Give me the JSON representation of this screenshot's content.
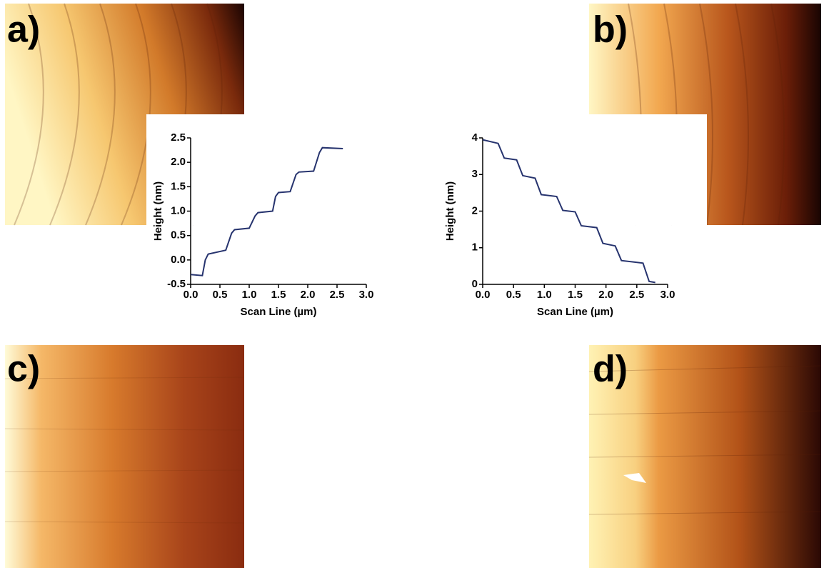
{
  "panels": [
    "a)",
    "b)",
    "c)",
    "d)"
  ],
  "chart_data": [
    {
      "type": "line",
      "xlabel": "Scan Line (µm)",
      "ylabel": "Height (nm)",
      "color": "#26336e",
      "x": [
        0,
        0.2,
        0.25,
        0.3,
        0.6,
        0.7,
        0.75,
        1.0,
        1.1,
        1.15,
        1.4,
        1.45,
        1.5,
        1.7,
        1.8,
        1.85,
        2.1,
        2.2,
        2.25,
        2.6
      ],
      "values": [
        -0.3,
        -0.32,
        0.0,
        0.12,
        0.2,
        0.55,
        0.62,
        0.65,
        0.9,
        0.97,
        1.0,
        1.3,
        1.38,
        1.4,
        1.75,
        1.8,
        1.82,
        2.2,
        2.3,
        2.28
      ],
      "xlim": [
        0,
        3
      ],
      "ylim": [
        -0.5,
        2.5
      ],
      "xticks": [
        {
          "value": 0,
          "label": "0.0"
        },
        0.5,
        {
          "value": 1,
          "label": "1.0"
        },
        1.5,
        {
          "value": 2,
          "label": "2.0"
        },
        2.5,
        {
          "value": 3,
          "label": "3.0"
        }
      ],
      "yticks": [
        -0.5,
        {
          "value": 0,
          "label": "0.0"
        },
        0.5,
        {
          "value": 1,
          "label": "1.0"
        },
        1.5,
        {
          "value": 2,
          "label": "2.0"
        },
        2.5
      ]
    },
    {
      "type": "line",
      "xlabel": "Scan Line (µm)",
      "ylabel": "Height (nm)",
      "color": "#26336e",
      "x": [
        0,
        0.25,
        0.35,
        0.55,
        0.65,
        0.85,
        0.95,
        1.2,
        1.3,
        1.5,
        1.6,
        1.85,
        1.95,
        2.15,
        2.25,
        2.6,
        2.7,
        2.8
      ],
      "values": [
        3.95,
        3.85,
        3.45,
        3.4,
        2.97,
        2.9,
        2.45,
        2.4,
        2.02,
        1.98,
        1.6,
        1.55,
        1.12,
        1.05,
        0.65,
        0.58,
        0.08,
        0.05
      ],
      "xlim": [
        0,
        3
      ],
      "ylim": [
        0,
        4
      ],
      "xticks": [
        {
          "value": 0,
          "label": "0.0"
        },
        0.5,
        {
          "value": 1,
          "label": "1.0"
        },
        1.5,
        {
          "value": 2,
          "label": "2.0"
        },
        2.5,
        {
          "value": 3,
          "label": "3.0"
        }
      ],
      "yticks": [
        0,
        1,
        2,
        3,
        4
      ]
    }
  ]
}
